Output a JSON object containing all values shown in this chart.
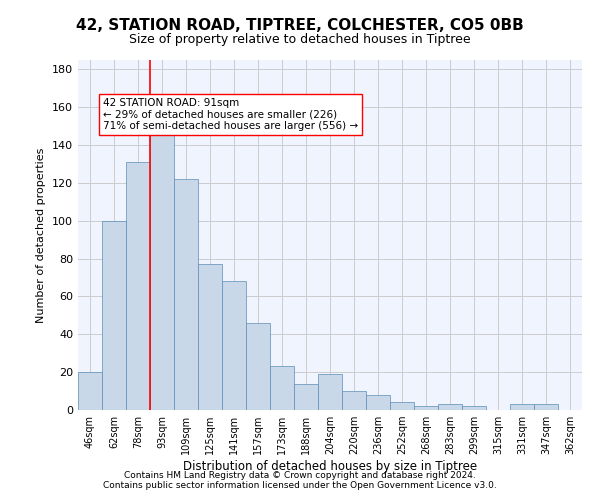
{
  "title1": "42, STATION ROAD, TIPTREE, COLCHESTER, CO5 0BB",
  "title2": "Size of property relative to detached houses in Tiptree",
  "xlabel": "Distribution of detached houses by size in Tiptree",
  "ylabel": "Number of detached properties",
  "categories": [
    "46sqm",
    "62sqm",
    "78sqm",
    "93sqm",
    "109sqm",
    "125sqm",
    "141sqm",
    "157sqm",
    "173sqm",
    "188sqm",
    "204sqm",
    "220sqm",
    "236sqm",
    "252sqm",
    "268sqm",
    "283sqm",
    "299sqm",
    "315sqm",
    "331sqm",
    "347sqm",
    "362sqm"
  ],
  "values": [
    20,
    100,
    131,
    147,
    122,
    77,
    68,
    46,
    23,
    14,
    19,
    10,
    8,
    4,
    2,
    3,
    2,
    0,
    3,
    3,
    0
  ],
  "bar_color": "#c8d8e8",
  "bar_edge_color": "#5b8db8",
  "grid_color": "#cccccc",
  "background_color": "#f0f4ff",
  "vline_x": 3,
  "vline_color": "red",
  "annotation_text": "42 STATION ROAD: 91sqm\n← 29% of detached houses are smaller (226)\n71% of semi-detached houses are larger (556) →",
  "annotation_box_color": "white",
  "annotation_box_edge": "red",
  "footer1": "Contains HM Land Registry data © Crown copyright and database right 2024.",
  "footer2": "Contains public sector information licensed under the Open Government Licence v3.0.",
  "ylim": [
    0,
    185
  ],
  "yticks": [
    0,
    20,
    40,
    60,
    80,
    100,
    120,
    140,
    160,
    180
  ]
}
